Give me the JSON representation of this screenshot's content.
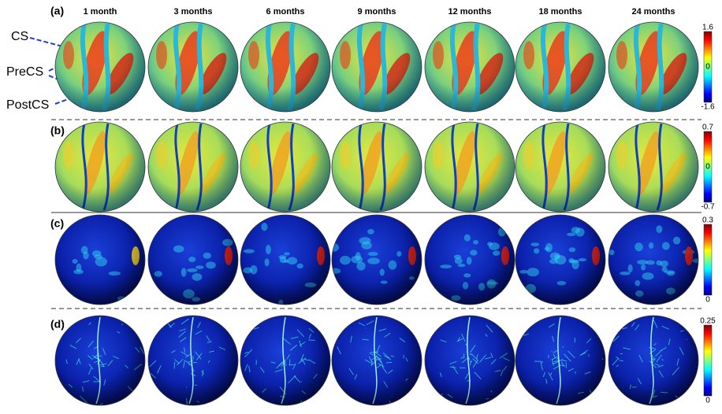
{
  "columns": [
    "1 month",
    "3 months",
    "6 months",
    "9 months",
    "12 months",
    "18 months",
    "24 months"
  ],
  "rows": [
    {
      "label": "(a)",
      "colorbar": [
        "1.6",
        "0",
        "-1.6"
      ]
    },
    {
      "label": "(b)",
      "colorbar": [
        "0.7",
        "0",
        "-0.7"
      ]
    },
    {
      "label": "(c)",
      "colorbar": [
        "0.3",
        "0"
      ]
    },
    {
      "label": "(d)",
      "colorbar": [
        "0.25",
        "0"
      ]
    }
  ],
  "annotations": [
    "CS",
    "PreCS",
    "PostCS"
  ]
}
